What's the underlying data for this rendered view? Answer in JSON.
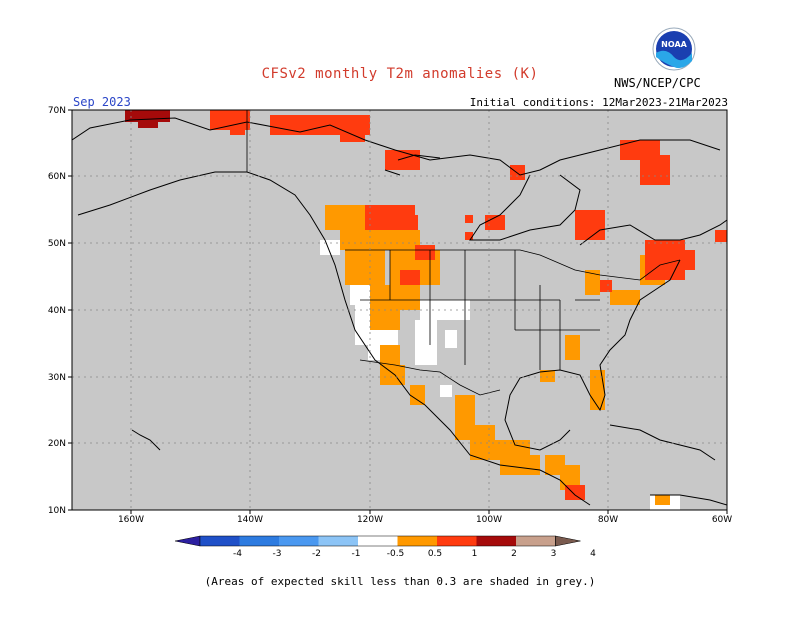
{
  "header": {
    "title": "CFSv2 monthly T2m anomalies (K)",
    "month": "Sep 2023",
    "initial_conditions": "Initial conditions: 12Mar2023-21Mar2023",
    "agency": "NWS/NCEP/CPC",
    "logo_text": "NOAA"
  },
  "map": {
    "lat_labels": [
      "70N",
      "60N",
      "50N",
      "40N",
      "30N",
      "20N",
      "10N"
    ],
    "lon_labels": [
      "160W",
      "140W",
      "120W",
      "100W",
      "80W",
      "60W"
    ],
    "background_color": "#c8c8c8",
    "no_skill_note": "(Areas of expected skill less than 0.3 are shaded in grey.)"
  },
  "legend": {
    "labels": [
      "-4",
      "-3",
      "-2",
      "-1",
      "-0.5",
      "0.5",
      "1",
      "2",
      "3",
      "4"
    ],
    "colors": [
      "#2c1fa0",
      "#1f50c8",
      "#2d7be0",
      "#4a98f0",
      "#8cc4f6",
      "#ffffff",
      "#ff9900",
      "#ff3b0f",
      "#a50a0a",
      "#c8a08c",
      "#7a5a4e"
    ]
  }
}
